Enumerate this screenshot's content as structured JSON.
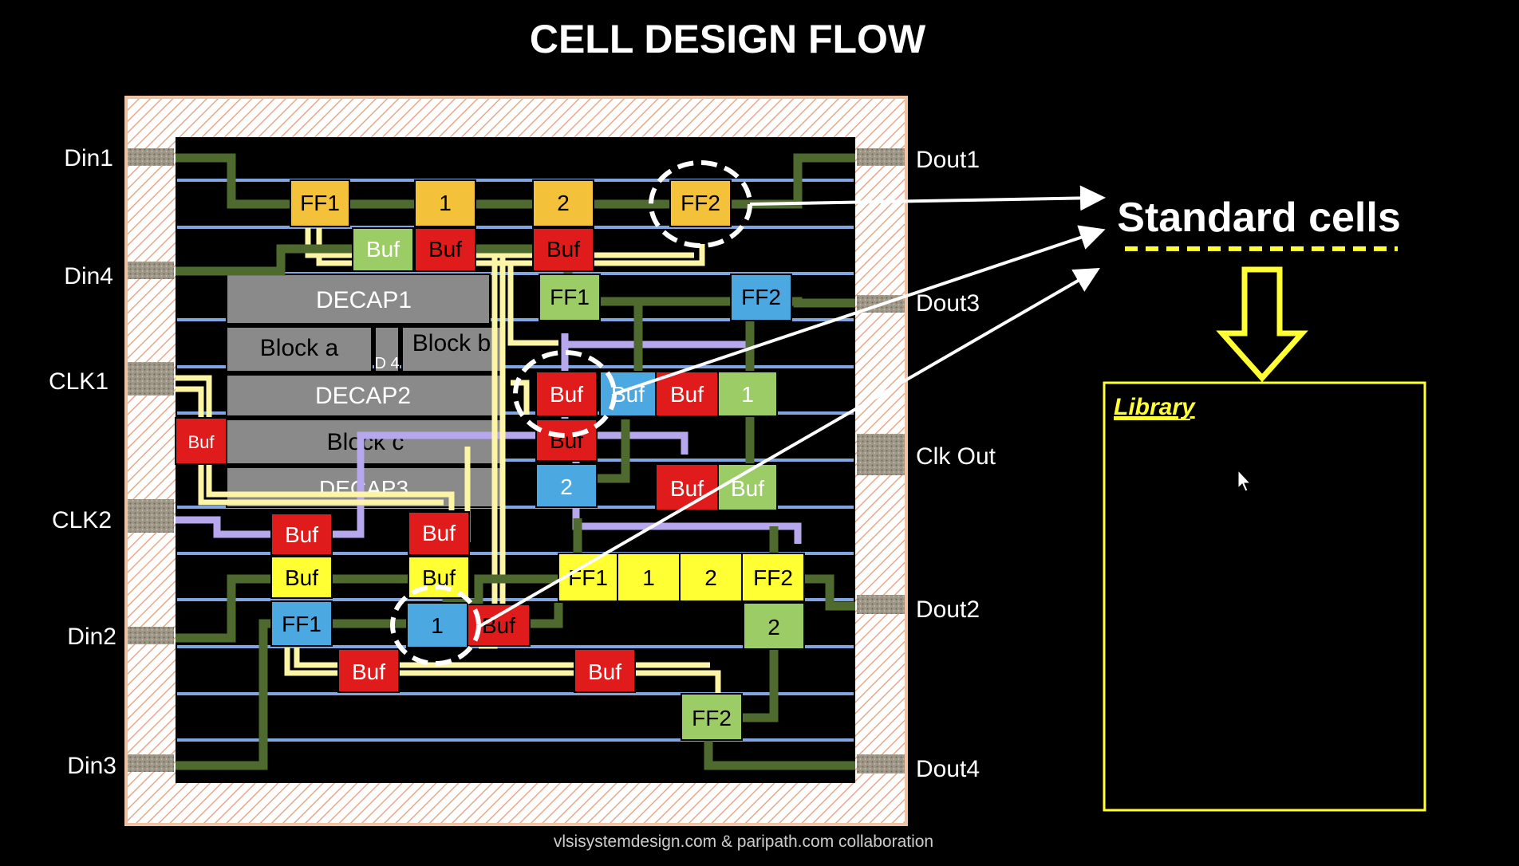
{
  "title": "CELL DESIGN FLOW",
  "colors": {
    "background": "#000000",
    "die_border": "#f0c2a4",
    "hatch": "#e8a98a",
    "pad": "#9e9686",
    "green_cell": "#9ccc65",
    "yellow_cell": "#ffff33",
    "orange_cell": "#f3c13a",
    "red_cell": "#e01b1b",
    "blue_cell": "#4ba8e0",
    "macro_gray": "#8a8a8a",
    "wire_green": "#4e6a2e",
    "wire_yellow": "#fdf5a6",
    "wire_lavender": "#b7a8ee",
    "row_blue": "#7fa6e0",
    "accent_yellow": "#ffff33"
  },
  "pins_left": [
    {
      "id": "din1",
      "label": "Din1"
    },
    {
      "id": "din4",
      "label": "Din4"
    },
    {
      "id": "clk1",
      "label": "CLK1"
    },
    {
      "id": "clk2",
      "label": "CLK2"
    },
    {
      "id": "din2",
      "label": "Din2"
    },
    {
      "id": "din3",
      "label": "Din3"
    }
  ],
  "pins_right": [
    {
      "id": "dout1",
      "label": "Dout1"
    },
    {
      "id": "dout3",
      "label": "Dout3"
    },
    {
      "id": "clkout",
      "label": "Clk Out"
    },
    {
      "id": "dout2",
      "label": "Dout2"
    },
    {
      "id": "dout4",
      "label": "Dout4"
    }
  ],
  "macros": {
    "decap1": "DECAP1",
    "block_a": "Block a",
    "d4": "D 4",
    "block_b": "Block b",
    "decap2": "DECAP2",
    "block_c": "Block c",
    "decap3": "DECAP3"
  },
  "cells": {
    "ff1_top": "FF1",
    "one_top": "1",
    "two_top": "2",
    "ff2_top": "FF2",
    "buf_g_top": "Buf",
    "buf_r_top1": "Buf",
    "buf_r_top2": "Buf",
    "ff1_green": "FF1",
    "ff2_blue": "FF2",
    "buf_left": "Buf",
    "buf_mid_red": "Buf",
    "buf_mid_blue": "Buf",
    "buf_mid_red2": "Buf",
    "one_green": "1",
    "buf_under": "Buf",
    "two_blue": "2",
    "buf_red_r": "Buf",
    "buf_green_r": "Buf",
    "buf_r1": "Buf",
    "buf_y1": "Buf",
    "ff1_blue": "FF1",
    "buf_r2": "Buf",
    "buf_y2": "Buf",
    "one_blue": "1",
    "buf_hidden": "Buf",
    "ff1_yellow": "FF1",
    "one_yellow": "1",
    "two_yellow": "2",
    "ff2_yellow": "FF2",
    "two_green": "2",
    "buf_bot1": "Buf",
    "buf_bot2": "Buf",
    "ff2_green": "FF2"
  },
  "standard_cells": "Standard cells",
  "library": {
    "label": "Library"
  },
  "credit": "vlsisystemdesign.com & paripath.com collaboration"
}
